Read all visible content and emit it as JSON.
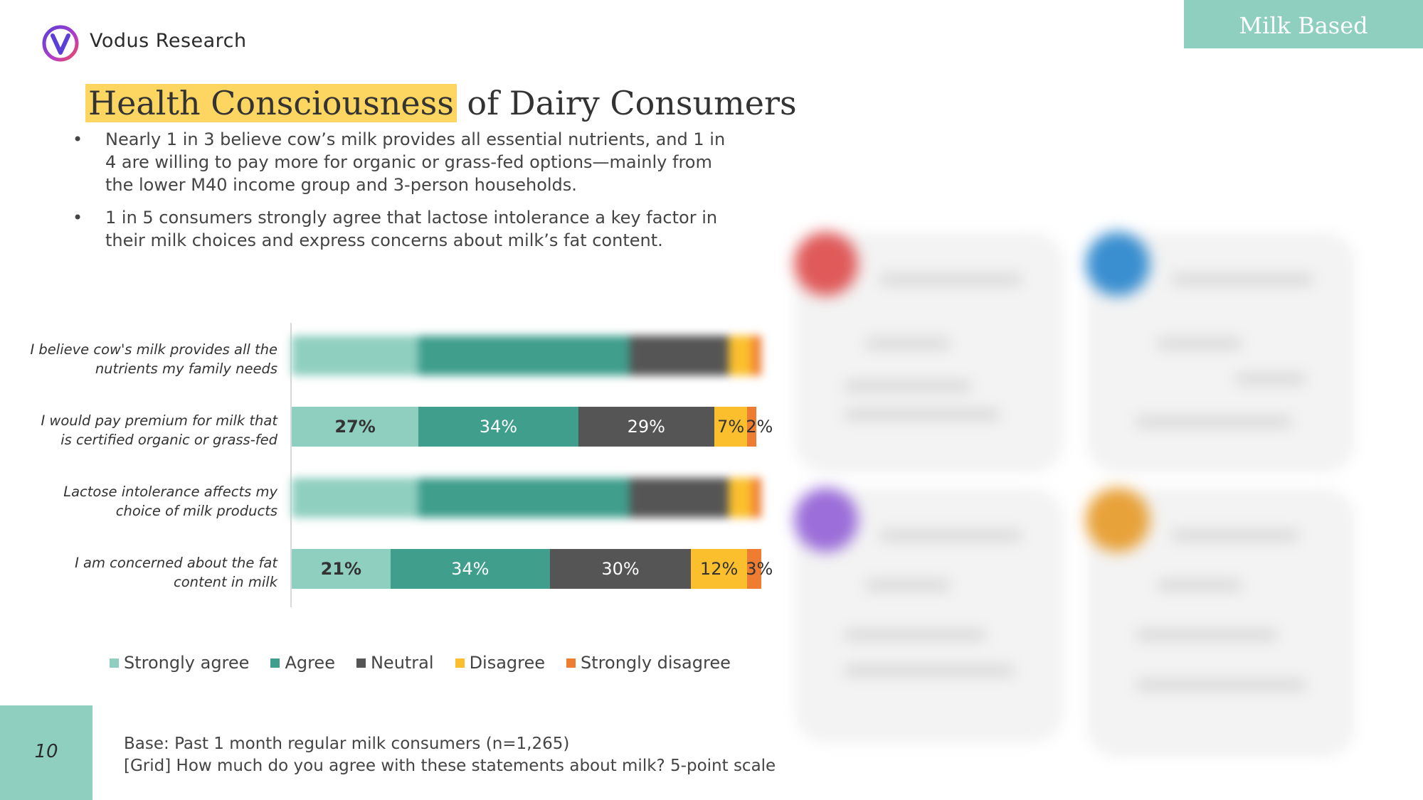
{
  "header": {
    "brand": "Vodus Research",
    "tag": "Milk Based",
    "accent": "#8fcfc0",
    "highlight": "#fcd660"
  },
  "title": {
    "highlight": "Health Consciousness",
    "rest": "of Dairy Consumers"
  },
  "bullets": [
    "Nearly 1 in 3 believe cow’s milk provides all essential nutrients, and 1 in 4 are willing to pay more for organic or grass-fed options—mainly from the lower M40 income group and 3-person households.",
    "1 in 5 consumers strongly agree that lactose intolerance a key factor in their milk choices and express concerns about milk’s fat content."
  ],
  "chart_data": {
    "type": "bar",
    "orientation": "horizontal",
    "stacked": true,
    "categories": [
      "I believe cow's milk provides all the nutrients my family needs",
      "I would pay premium for milk that is certified organic or grass-fed",
      "Lactose intolerance affects my choice of milk products",
      "I am concerned about the fat content in milk"
    ],
    "series": [
      {
        "name": "Strongly agree",
        "color": "#8fcfc0",
        "values": [
          null,
          27,
          null,
          21
        ]
      },
      {
        "name": "Agree",
        "color": "#3f9e8c",
        "values": [
          null,
          34,
          null,
          34
        ]
      },
      {
        "name": "Neutral",
        "color": "#555555",
        "values": [
          null,
          29,
          null,
          30
        ]
      },
      {
        "name": "Disagree",
        "color": "#fbbf2e",
        "values": [
          null,
          7,
          null,
          12
        ]
      },
      {
        "name": "Strongly disagree",
        "color": "#ef7d31",
        "values": [
          null,
          2,
          null,
          3
        ]
      }
    ],
    "blurred_rows": [
      0,
      2
    ],
    "value_format": "percent",
    "legend_position": "bottom",
    "xlim": [
      0,
      100
    ]
  },
  "footer": {
    "page": "10",
    "base": "Base: Past 1 month regular milk consumers (n=1,265)",
    "question": "[Grid] How much do you agree with these statements about milk? 5-point scale"
  }
}
